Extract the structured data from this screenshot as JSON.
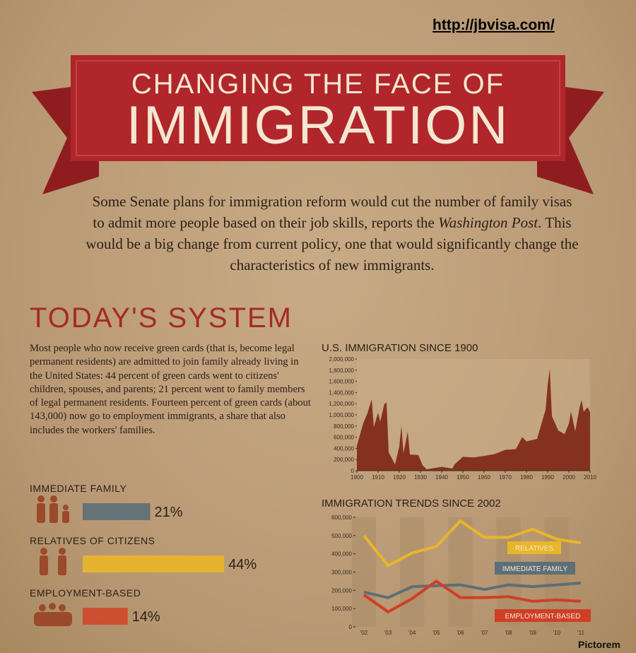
{
  "url": "http://jbvisa.com/",
  "banner": {
    "line1": "CHANGING THE FACE OF",
    "line2": "IMMIGRATION"
  },
  "intro": {
    "before": "Some Senate plans for immigration reform would cut the number of family visas to admit more people based on their job skills, reports the ",
    "italic": "Washington Post",
    "after": ". This would be a big change from current policy, one that would significantly change the characteristics of new immigrants."
  },
  "section_title": "TODAY'S SYSTEM",
  "body": "Most people who now receive green cards (that is, become legal permanent residents) are admitted to join family already living in the United States: 44 percent of green cards went to citizens' children, spouses, and parents; 21 percent went to family members of legal permanent residents. Fourteen percent of green cards (about 143,000) now go to employment immigrants, a share that also includes the workers' families.",
  "chart_data": [
    {
      "type": "bar",
      "categories": [
        "IMMEDIATE FAMILY",
        "RELATIVES OF CITIZENS",
        "EMPLOYMENT-BASED"
      ],
      "values": [
        21,
        44,
        14
      ],
      "value_labels": [
        "21%",
        "44%",
        "14%"
      ],
      "colors": [
        "#5d6f78",
        "#e9b52a",
        "#cf4a2c"
      ]
    },
    {
      "type": "area",
      "title": "U.S. IMMIGRATION SINCE 1900",
      "color": "#84321f",
      "x": [
        1900,
        1903,
        1905,
        1907,
        1908,
        1910,
        1911,
        1913,
        1914,
        1915,
        1918,
        1920,
        1921,
        1922,
        1924,
        1925,
        1929,
        1931,
        1933,
        1940,
        1945,
        1946,
        1950,
        1955,
        1960,
        1965,
        1970,
        1975,
        1978,
        1980,
        1985,
        1989,
        1990,
        1991,
        1992,
        1995,
        1998,
        2000,
        2001,
        2003,
        2005,
        2006,
        2007,
        2008,
        2009,
        2010
      ],
      "values": [
        450000,
        850000,
        1030000,
        1280000,
        780000,
        1040000,
        880000,
        1200000,
        1220000,
        330000,
        110000,
        430000,
        800000,
        310000,
        700000,
        290000,
        280000,
        97000,
        23000,
        70000,
        38000,
        108000,
        249000,
        237000,
        265000,
        297000,
        373000,
        386000,
        601000,
        524000,
        570000,
        1090000,
        1536000,
        1827000,
        974000,
        720000,
        654000,
        841000,
        1058000,
        704000,
        1122000,
        1266000,
        1052000,
        1107000,
        1131000,
        1042000
      ],
      "xlim": [
        1900,
        2010
      ],
      "ylim": [
        0,
        2000000
      ],
      "xticks": [
        1900,
        1910,
        1920,
        1930,
        1940,
        1950,
        1960,
        1970,
        1980,
        1990,
        2000,
        2010
      ],
      "yticks": [
        0,
        {
          "value": 200000,
          "label": "200,000"
        },
        {
          "value": 400000,
          "label": "400,000"
        },
        {
          "value": 600000,
          "label": "600,000"
        },
        {
          "value": 800000,
          "label": "800,000"
        },
        {
          "value": 1000000,
          "label": "1,000,000"
        },
        {
          "value": 1200000,
          "label": "1,200,000"
        },
        {
          "value": 1400000,
          "label": "1,400,000"
        },
        {
          "value": 1600000,
          "label": "1,600,000"
        },
        {
          "value": 1800000,
          "label": "1,800,000"
        },
        {
          "value": 2000000,
          "label": "2,000,000"
        }
      ]
    },
    {
      "type": "line",
      "title": "IMMIGRATION TRENDS SINCE 2002",
      "categories": [
        "'02",
        "'03",
        "'04",
        "'05",
        "'06",
        "'07",
        "'08",
        "'09",
        "'10",
        "'11"
      ],
      "ylim": [
        0,
        600000
      ],
      "yticks": [
        0,
        {
          "value": 100000,
          "label": "100,000"
        },
        {
          "value": 200000,
          "label": "200,000"
        },
        {
          "value": 300000,
          "label": "300,000"
        },
        {
          "value": 400000,
          "label": "400,000"
        },
        {
          "value": 500000,
          "label": "500,000"
        },
        {
          "value": 600000,
          "label": "600,000"
        }
      ],
      "series": [
        {
          "name": "RELATIVES",
          "color": "#e9b52a",
          "values": [
            500000,
            335000,
            405000,
            440000,
            580000,
            490000,
            490000,
            535000,
            480000,
            460000
          ]
        },
        {
          "name": "IMMEDIATE FAMILY",
          "color": "#5d6f78",
          "values": [
            190000,
            160000,
            220000,
            225000,
            230000,
            205000,
            230000,
            220000,
            230000,
            240000
          ]
        },
        {
          "name": "EMPLOYMENT-BASED",
          "color": "#cf3f26",
          "values": [
            175000,
            82000,
            155000,
            250000,
            160000,
            160000,
            165000,
            140000,
            148000,
            140000
          ]
        }
      ]
    }
  ],
  "watermark": "Pictorem"
}
